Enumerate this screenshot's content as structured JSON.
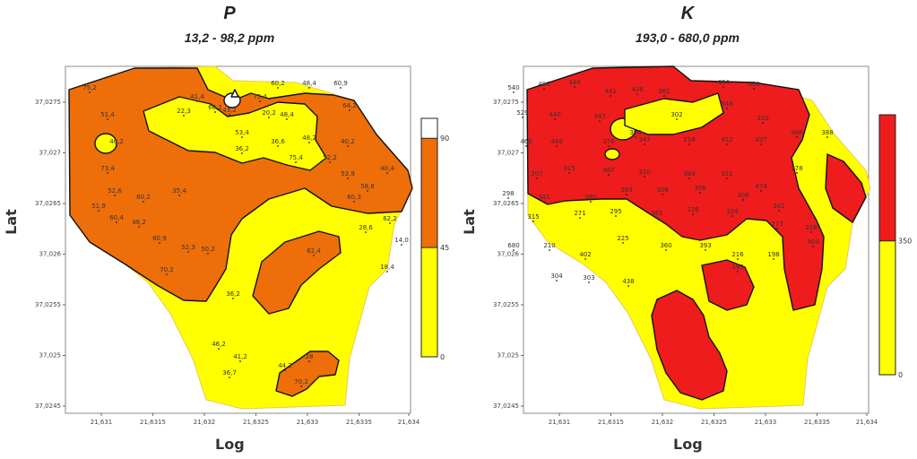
{
  "maps": [
    {
      "id": "p",
      "title": "P",
      "subtitle": "13,2 - 98,2 ppm",
      "xlabel": "Log",
      "ylabel": "Lat",
      "x_ticks": [
        "21,631",
        "21,6315",
        "21,632",
        "21,6325",
        "21,633",
        "21,6335",
        "21,634"
      ],
      "y_ticks": [
        "37,0275",
        "37,027",
        "37,0265",
        "37,026",
        "37,0255",
        "37,025",
        "37,0245"
      ],
      "legend": {
        "bands": [
          {
            "from": 0,
            "to": 45,
            "color": "#ffff00"
          },
          {
            "from": 45,
            "to": 90,
            "color": "#ee6e0a"
          },
          {
            "from": 90,
            "to": 98.2,
            "color": "#ffffff"
          }
        ],
        "labels": [
          "0",
          "45",
          "90"
        ]
      },
      "colors": {
        "low": "#ffff00",
        "mid": "#ee6e0a",
        "high": "#ffffff"
      },
      "sample_labels": [
        "75,2",
        "51,4",
        "40,2",
        "73,4",
        "52,6",
        "51,9",
        "60,2",
        "35,4",
        "60,4",
        "48,2",
        "60,9",
        "52,3",
        "50,2",
        "70,2",
        "22,3",
        "41,4",
        "60,2",
        "43,2",
        "75,4",
        "60,2",
        "48,4",
        "60,9",
        "64,2",
        "53,4",
        "20,2",
        "48,4",
        "36,2",
        "36,6",
        "48,2",
        "40,2",
        "75,4",
        "52,2",
        "53,9",
        "58,8",
        "40,4",
        "60,3",
        "62,2",
        "28,6",
        "14,0",
        "18,4",
        "62,4",
        "70,2",
        "28",
        "44,2",
        "36,2",
        "46,2",
        "41,2",
        "36,7"
      ]
    },
    {
      "id": "k",
      "title": "K",
      "subtitle": "193,0 - 680,0 ppm",
      "xlabel": "Log",
      "ylabel": "Lat",
      "x_ticks": [
        "21,631",
        "21,6315",
        "21,632",
        "21,6325",
        "21,633",
        "21,6335",
        "21,634"
      ],
      "y_ticks": [
        "37,0275",
        "37,027",
        "37,0265",
        "37,026",
        "37,0255",
        "37,025",
        "37,0245"
      ],
      "legend": {
        "bands": [
          {
            "from": 0,
            "to": 350,
            "color": "#ffff00"
          },
          {
            "from": 350,
            "to": 680,
            "color": "#ee1c1c"
          }
        ],
        "labels": [
          "0",
          "350"
        ]
      },
      "colors": {
        "low": "#ffff00",
        "high": "#ee1c1c"
      },
      "sample_labels": [
        "540",
        "406",
        "344",
        "441",
        "438",
        "361",
        "404",
        "406",
        "529",
        "440",
        "347",
        "389",
        "302",
        "348",
        "310",
        "460",
        "449",
        "376",
        "347",
        "216",
        "412",
        "437",
        "466",
        "388",
        "207",
        "315",
        "387",
        "310",
        "384",
        "321",
        "474",
        "278",
        "298",
        "341",
        "380",
        "363",
        "308",
        "358",
        "306",
        "342",
        "315",
        "271",
        "295",
        "361",
        "226",
        "224",
        "273",
        "228",
        "680",
        "210",
        "402",
        "225",
        "360",
        "393",
        "216",
        "198",
        "404",
        "304",
        "303",
        "438",
        "193"
      ]
    }
  ]
}
